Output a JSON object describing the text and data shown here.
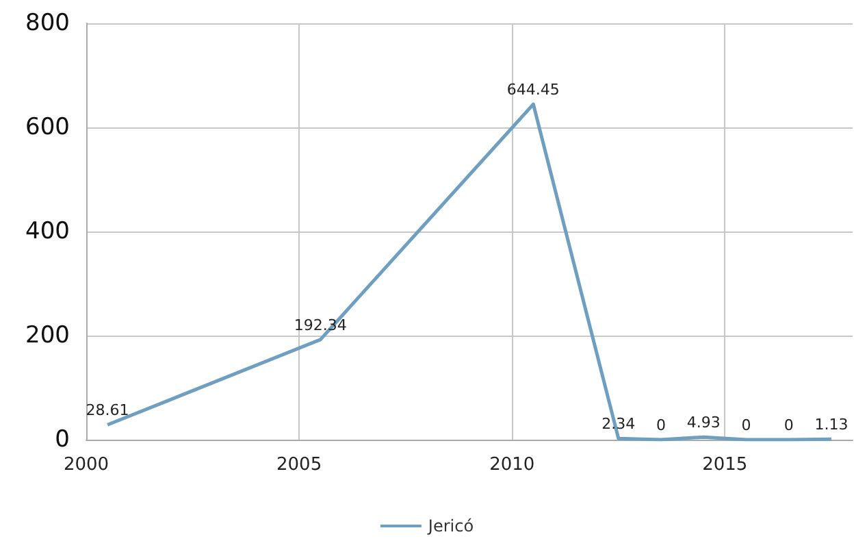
{
  "chart_data": {
    "type": "line",
    "x": [
      2000.5,
      2005.5,
      2010.5,
      2012.5,
      2013.5,
      2014.5,
      2015.5,
      2016.5,
      2017.5
    ],
    "series": [
      {
        "name": "Jericó",
        "color": "#6f9fc0",
        "values": [
          28.61,
          192.34,
          644.45,
          2.34,
          0,
          4.93,
          0,
          0,
          1.13
        ]
      }
    ],
    "xlim": [
      2000,
      2018
    ],
    "xticks": [
      2000,
      2005,
      2010,
      2015
    ],
    "ylim": [
      0,
      800
    ],
    "yticks": [
      0,
      200,
      400,
      600,
      800
    ],
    "grid": true,
    "legend": "bottom",
    "data_labels": true,
    "marker": "none",
    "line_style": "solid"
  }
}
